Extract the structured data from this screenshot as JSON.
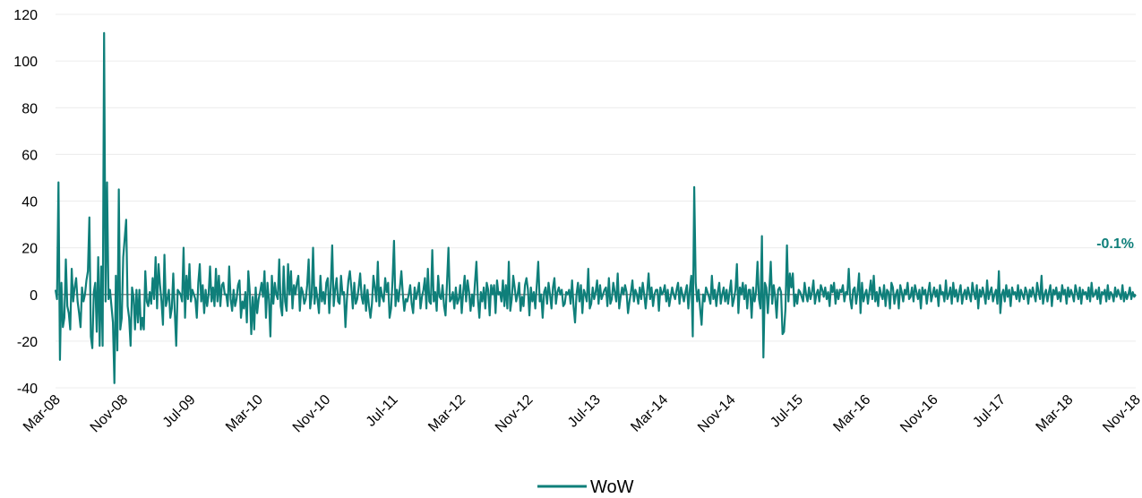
{
  "chart_data": {
    "type": "line",
    "title": "",
    "xlabel": "",
    "ylabel": "",
    "ylim": [
      -40,
      120
    ],
    "y_ticks": [
      120,
      100,
      80,
      60,
      40,
      20,
      0,
      -20,
      -40
    ],
    "x_tick_labels": [
      "Mar-08",
      "Nov-08",
      "Jul-09",
      "Mar-10",
      "Nov-10",
      "Jul-11",
      "Mar-12",
      "Nov-12",
      "Jul-13",
      "Mar-14",
      "Nov-14",
      "Jul-15",
      "Mar-16",
      "Nov-16",
      "Jul-17",
      "Mar-18",
      "Nov-18"
    ],
    "grid": true,
    "legend_position": "bottom-center",
    "x_start": "2008-03",
    "x_end": "2018-11",
    "frequency": "weekly",
    "end_label": "-0.1%",
    "colors": {
      "series": "#0f7f7a",
      "zero_line": "#8c8c8c",
      "grid": "#ececec"
    },
    "series": [
      {
        "name": "WoW",
        "values": [
          2,
          -2,
          48,
          -28,
          5,
          -14,
          -10,
          15,
          -5,
          -8,
          -15,
          11,
          -3,
          3,
          7,
          -3,
          -8,
          -14,
          3,
          -3,
          0,
          6,
          10,
          33,
          -18,
          -23,
          1,
          5,
          -16,
          16,
          -22,
          12,
          -22,
          112,
          -3,
          48,
          -2,
          2,
          -5,
          -12,
          -38,
          8,
          -24,
          45,
          -15,
          -10,
          16,
          24,
          32,
          -5,
          -10,
          -22,
          3,
          -1,
          -15,
          2,
          -12,
          2,
          -15,
          -10,
          -15,
          10,
          -3,
          -5,
          1,
          -4,
          7,
          -2,
          16,
          -6,
          13,
          4,
          -3,
          -13,
          17,
          -5,
          -2,
          2,
          -10,
          -6,
          9,
          -7,
          -22,
          2,
          1,
          0,
          -3,
          20,
          -10,
          8,
          -2,
          13,
          -3,
          2,
          0,
          -2,
          -10,
          5,
          13,
          -3,
          4,
          -8,
          2,
          -5,
          0,
          12,
          -3,
          3,
          -5,
          11,
          -3,
          8,
          -5,
          4,
          5,
          0,
          0,
          -5,
          12,
          -2,
          -7,
          2,
          -5,
          -2,
          4,
          6,
          -10,
          -3,
          -6,
          1,
          -12,
          10,
          1,
          -17,
          -1,
          -15,
          3,
          -8,
          -2,
          1,
          5,
          -1,
          10,
          -10,
          5,
          -2,
          -18,
          8,
          -4,
          5,
          0,
          -2,
          15,
          -5,
          -9,
          12,
          -3,
          -7,
          13,
          0,
          10,
          -6,
          4,
          0,
          5,
          8,
          -7,
          3,
          1,
          -4,
          -2,
          4,
          15,
          -6,
          -1,
          20,
          -4,
          3,
          -2,
          -8,
          8,
          -3,
          1,
          -4,
          5,
          7,
          -8,
          3,
          21,
          -5,
          2,
          7,
          -3,
          -4,
          8,
          0,
          1,
          -14,
          -2,
          6,
          10,
          3,
          -6,
          5,
          -4,
          -2,
          3,
          9,
          -1,
          -4,
          4,
          -7,
          2,
          -5,
          -10,
          -4,
          8,
          3,
          -3,
          14,
          -5,
          3,
          -1,
          -3,
          7,
          1,
          5,
          -10,
          -6,
          6,
          23,
          -5,
          2,
          -3,
          3,
          10,
          0,
          -7,
          -2,
          -3,
          0,
          4,
          -4,
          -8,
          3,
          -2,
          1,
          5,
          -6,
          -1,
          2,
          7,
          -6,
          11,
          -3,
          -4,
          19,
          -3,
          1,
          -7,
          8,
          -1,
          -2,
          4,
          -5,
          -9,
          5,
          20,
          -3,
          -2,
          1,
          -6,
          3,
          -4,
          -2,
          4,
          -8,
          1,
          8,
          -3,
          6,
          1,
          -7,
          0,
          -5,
          5,
          14,
          -2,
          -10,
          1,
          -3,
          3,
          -6,
          5,
          2,
          -9,
          4,
          0,
          4,
          -8,
          6,
          0,
          1,
          -3,
          6,
          -5,
          4,
          -6,
          14,
          -7,
          -2,
          8,
          3,
          -3,
          0,
          5,
          -7,
          -1,
          -5,
          4,
          7,
          2,
          -9,
          3,
          -3,
          1,
          -6,
          4,
          14,
          -3,
          0,
          -10,
          1,
          3,
          -4,
          5,
          0,
          -6,
          3,
          7,
          -4,
          1,
          3,
          0,
          2,
          -5,
          -4,
          1,
          0,
          2,
          -4,
          6,
          -5,
          -12,
          0,
          5,
          -3,
          4,
          -8,
          2,
          0,
          -3,
          11,
          -6,
          -4,
          3,
          -2,
          1,
          6,
          -4,
          4,
          -2,
          0,
          2,
          3,
          -5,
          7,
          -4,
          -2,
          5,
          1,
          -3,
          9,
          -6,
          -1,
          3,
          0,
          4,
          1,
          -8,
          -3,
          1,
          6,
          -3,
          2,
          0,
          -4,
          3,
          -2,
          5,
          0,
          -6,
          1,
          9,
          -2,
          3,
          -5,
          0,
          2,
          2,
          -7,
          3,
          0,
          1,
          4,
          -3,
          2,
          -5,
          -1,
          3,
          0,
          -2,
          2,
          5,
          -4,
          3,
          0,
          -3,
          1,
          4,
          -6,
          2,
          8,
          -18,
          46,
          5,
          -3,
          2,
          -6,
          -13,
          0,
          -3,
          3,
          1,
          -1,
          -4,
          8,
          -2,
          2,
          -5,
          1,
          5,
          -4,
          0,
          3,
          -3,
          2,
          -4,
          1,
          6,
          -5,
          -2,
          2,
          13,
          -8,
          3,
          0,
          5,
          -2,
          4,
          -6,
          2,
          2,
          -10,
          3,
          -3,
          1,
          14,
          -2,
          -6,
          25,
          -27,
          5,
          3,
          -8,
          2,
          14,
          -4,
          4,
          -1,
          -10,
          2,
          3,
          1,
          -17,
          -16,
          -6,
          21,
          -3,
          9,
          3,
          9,
          -5,
          0,
          -4,
          2,
          1,
          -1,
          -3,
          5,
          0,
          -3,
          3,
          -2,
          1,
          6,
          -4,
          0,
          2,
          -3,
          4,
          2,
          -1,
          3,
          -2,
          1,
          -5,
          4,
          1,
          5,
          -4,
          2,
          -2,
          2,
          1,
          4,
          -3,
          1,
          0,
          11,
          -2,
          -6,
          2,
          3,
          -4,
          1,
          9,
          -8,
          5,
          -3,
          0,
          2,
          -4,
          1,
          6,
          -2,
          8,
          -3,
          1,
          -5,
          3,
          0,
          -2,
          4,
          -5,
          2,
          1,
          -6,
          5,
          3,
          -4,
          0,
          2,
          -6,
          4,
          1,
          -3,
          2,
          0,
          5,
          -2,
          -1,
          3,
          -3,
          4,
          1,
          -2,
          2,
          -6,
          3,
          0,
          2,
          -4,
          1,
          5,
          -3,
          0,
          3,
          -1,
          2,
          -5,
          4,
          0,
          1,
          -3,
          6,
          -2,
          0,
          3,
          -4,
          5,
          -1,
          2,
          -3,
          1,
          4,
          -4,
          0,
          2,
          -2,
          3,
          0,
          -3,
          5,
          1,
          -2,
          4,
          -6,
          2,
          -1,
          3,
          0,
          -4,
          6,
          -2,
          1,
          3,
          -3,
          0,
          2,
          -4,
          10,
          -8,
          0,
          2,
          -3,
          4,
          -1,
          2,
          -5,
          3,
          0,
          1,
          -2,
          4,
          -3,
          2,
          0,
          -2,
          3,
          1,
          -4,
          2,
          -1,
          3,
          0,
          -3,
          5,
          1,
          -2,
          8,
          -4,
          0,
          2,
          -3,
          1,
          4,
          -5,
          2,
          0,
          3,
          -2,
          1,
          -3,
          4,
          0,
          2,
          -4,
          3,
          -1,
          2,
          0,
          -3,
          4,
          1,
          -2,
          3,
          -4,
          2,
          0,
          1,
          -2,
          3,
          -3,
          5,
          -1,
          0,
          2,
          -2,
          3,
          -4,
          1,
          0,
          2,
          -3,
          4,
          -2,
          1,
          0,
          -3,
          3,
          -1,
          2,
          0,
          -2,
          4,
          -3,
          1,
          -2,
          0,
          3,
          -2,
          1,
          -1,
          -0.1
        ]
      }
    ]
  }
}
